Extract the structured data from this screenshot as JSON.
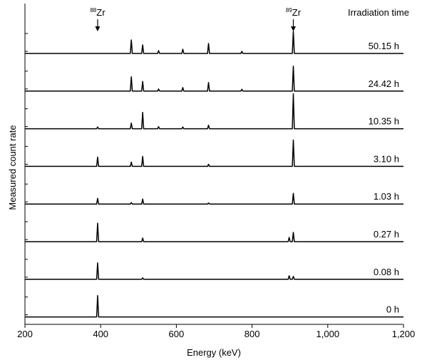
{
  "chart_data": {
    "type": "line",
    "title": "",
    "xlabel": "Energy (keV)",
    "ylabel": "Measured count rate",
    "xlim": [
      200,
      1200
    ],
    "x_ticks": [
      200,
      400,
      600,
      800,
      1000,
      1200
    ],
    "x_tick_labels": [
      "200",
      "400",
      "600",
      "800",
      "1,000",
      "1,200"
    ],
    "legend_title": "Irradiation time",
    "annotations": [
      {
        "mass": "88",
        "element": "Zr",
        "x": 392
      },
      {
        "mass": "89",
        "element": "Zr",
        "x": 909
      }
    ],
    "series": [
      {
        "name": "50.15 h",
        "peaks": [
          [
            481,
            0.38
          ],
          [
            511,
            0.24
          ],
          [
            553,
            0.08
          ],
          [
            617,
            0.12
          ],
          [
            685,
            0.28
          ],
          [
            773,
            0.06
          ],
          [
            909,
            0.62
          ]
        ]
      },
      {
        "name": "24.42 h",
        "peaks": [
          [
            481,
            0.4
          ],
          [
            511,
            0.27
          ],
          [
            553,
            0.06
          ],
          [
            617,
            0.1
          ],
          [
            685,
            0.24
          ],
          [
            773,
            0.05
          ],
          [
            909,
            0.7
          ]
        ]
      },
      {
        "name": "10.35 h",
        "peaks": [
          [
            392,
            0.05
          ],
          [
            481,
            0.16
          ],
          [
            511,
            0.46
          ],
          [
            553,
            0.06
          ],
          [
            617,
            0.05
          ],
          [
            685,
            0.1
          ],
          [
            909,
            0.98
          ]
        ]
      },
      {
        "name": "3.10 h",
        "peaks": [
          [
            392,
            0.26
          ],
          [
            481,
            0.12
          ],
          [
            511,
            0.28
          ],
          [
            685,
            0.06
          ],
          [
            909,
            0.74
          ]
        ]
      },
      {
        "name": "1.03 h",
        "peaks": [
          [
            392,
            0.16
          ],
          [
            481,
            0.04
          ],
          [
            511,
            0.14
          ],
          [
            685,
            0.03
          ],
          [
            909,
            0.3
          ]
        ]
      },
      {
        "name": "0.27 h",
        "peaks": [
          [
            392,
            0.52
          ],
          [
            511,
            0.1
          ],
          [
            898,
            0.12
          ],
          [
            909,
            0.26
          ]
        ]
      },
      {
        "name": "0.08 h",
        "peaks": [
          [
            392,
            0.46
          ],
          [
            511,
            0.04
          ],
          [
            898,
            0.1
          ],
          [
            909,
            0.08
          ]
        ]
      },
      {
        "name": "0 h",
        "peaks": [
          [
            392,
            0.6
          ]
        ]
      }
    ]
  }
}
